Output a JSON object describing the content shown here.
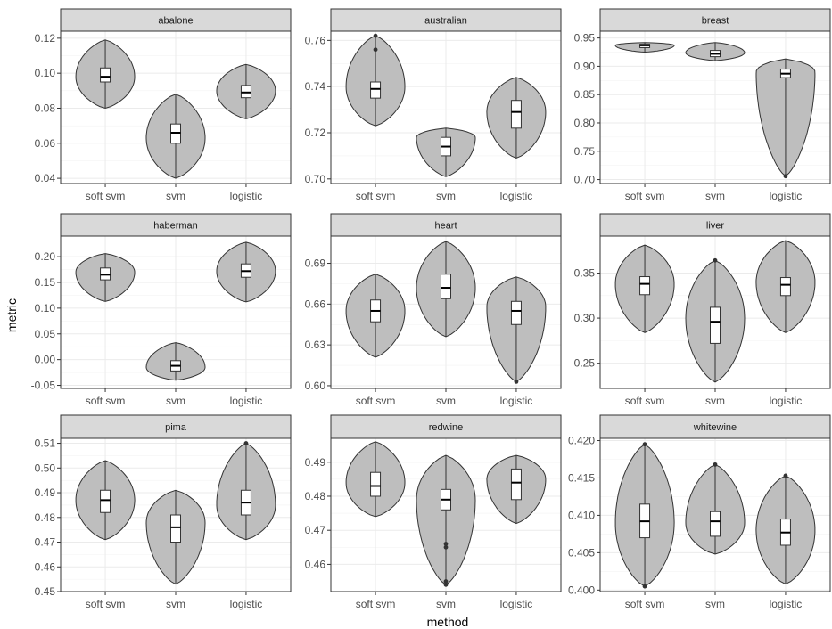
{
  "figure": {
    "xlabel": "method",
    "ylabel": "metric",
    "colors": {
      "violin_fill": "#bebebe",
      "violin_stroke": "#333333",
      "box_fill": "#ffffff",
      "strip_fill": "#d9d9d9",
      "grid": "#ebebeb",
      "panel_border": "#333333"
    }
  },
  "chart_data": [
    {
      "type": "violin",
      "title": "abalone",
      "categories": [
        "soft svm",
        "svm",
        "logistic"
      ],
      "yticks": [
        0.04,
        0.06,
        0.08,
        0.1,
        0.12
      ],
      "ytick_labels": [
        "0.04",
        "0.06",
        "0.08",
        "0.10",
        "0.12"
      ],
      "ylim": [
        0.037,
        0.124
      ],
      "groups": [
        {
          "name": "soft svm",
          "min": 0.08,
          "max": 0.119,
          "q1": 0.095,
          "median": 0.098,
          "q3": 0.103,
          "widest": 0.098,
          "outliers": []
        },
        {
          "name": "svm",
          "min": 0.04,
          "max": 0.088,
          "q1": 0.06,
          "median": 0.066,
          "q3": 0.071,
          "widest": 0.063,
          "outliers": []
        },
        {
          "name": "logistic",
          "min": 0.074,
          "max": 0.105,
          "q1": 0.086,
          "median": 0.089,
          "q3": 0.093,
          "widest": 0.09,
          "outliers": []
        }
      ]
    },
    {
      "type": "violin",
      "title": "australian",
      "categories": [
        "soft svm",
        "svm",
        "logistic"
      ],
      "yticks": [
        0.7,
        0.72,
        0.74,
        0.76
      ],
      "ytick_labels": [
        "0.70",
        "0.72",
        "0.74",
        "0.76"
      ],
      "ylim": [
        0.698,
        0.764
      ],
      "groups": [
        {
          "name": "soft svm",
          "min": 0.723,
          "max": 0.762,
          "q1": 0.735,
          "median": 0.739,
          "q3": 0.742,
          "widest": 0.74,
          "outliers": [
            0.762,
            0.756
          ]
        },
        {
          "name": "svm",
          "min": 0.701,
          "max": 0.722,
          "q1": 0.71,
          "median": 0.714,
          "q3": 0.718,
          "widest": 0.718,
          "outliers": []
        },
        {
          "name": "logistic",
          "min": 0.709,
          "max": 0.744,
          "q1": 0.722,
          "median": 0.729,
          "q3": 0.734,
          "widest": 0.729,
          "outliers": []
        }
      ]
    },
    {
      "type": "violin",
      "title": "breast",
      "categories": [
        "soft svm",
        "svm",
        "logistic"
      ],
      "yticks": [
        0.7,
        0.75,
        0.8,
        0.85,
        0.9,
        0.95
      ],
      "ytick_labels": [
        "0.70",
        "0.75",
        "0.80",
        "0.85",
        "0.90",
        "0.95"
      ],
      "ylim": [
        0.693,
        0.962
      ],
      "groups": [
        {
          "name": "soft svm",
          "min": 0.925,
          "max": 0.942,
          "q1": 0.933,
          "median": 0.937,
          "q3": 0.939,
          "widest": 0.937,
          "outliers": []
        },
        {
          "name": "svm",
          "min": 0.91,
          "max": 0.942,
          "q1": 0.917,
          "median": 0.922,
          "q3": 0.928,
          "widest": 0.924,
          "outliers": []
        },
        {
          "name": "logistic",
          "min": 0.706,
          "max": 0.913,
          "q1": 0.88,
          "median": 0.887,
          "q3": 0.895,
          "widest": 0.89,
          "outliers": [
            0.706
          ]
        }
      ]
    },
    {
      "type": "violin",
      "title": "haberman",
      "categories": [
        "soft svm",
        "svm",
        "logistic"
      ],
      "yticks": [
        -0.05,
        0.0,
        0.05,
        0.1,
        0.15,
        0.2
      ],
      "ytick_labels": [
        "-0.05",
        "0.00",
        "0.05",
        "0.10",
        "0.15",
        "0.20"
      ],
      "ylim": [
        -0.056,
        0.24
      ],
      "groups": [
        {
          "name": "soft svm",
          "min": 0.113,
          "max": 0.206,
          "q1": 0.155,
          "median": 0.165,
          "q3": 0.178,
          "widest": 0.17,
          "outliers": []
        },
        {
          "name": "svm",
          "min": -0.04,
          "max": 0.033,
          "q1": -0.022,
          "median": -0.012,
          "q3": -0.002,
          "widest": -0.015,
          "outliers": []
        },
        {
          "name": "logistic",
          "min": 0.112,
          "max": 0.228,
          "q1": 0.16,
          "median": 0.172,
          "q3": 0.186,
          "widest": 0.172,
          "outliers": []
        }
      ]
    },
    {
      "type": "violin",
      "title": "heart",
      "categories": [
        "soft svm",
        "svm",
        "logistic"
      ],
      "yticks": [
        0.6,
        0.63,
        0.66,
        0.69
      ],
      "ytick_labels": [
        "0.60",
        "0.63",
        "0.66",
        "0.69"
      ],
      "ylim": [
        0.598,
        0.71
      ],
      "groups": [
        {
          "name": "soft svm",
          "min": 0.621,
          "max": 0.682,
          "q1": 0.647,
          "median": 0.655,
          "q3": 0.663,
          "widest": 0.655,
          "outliers": []
        },
        {
          "name": "svm",
          "min": 0.636,
          "max": 0.706,
          "q1": 0.664,
          "median": 0.672,
          "q3": 0.682,
          "widest": 0.672,
          "outliers": []
        },
        {
          "name": "logistic",
          "min": 0.603,
          "max": 0.68,
          "q1": 0.645,
          "median": 0.655,
          "q3": 0.662,
          "widest": 0.658,
          "outliers": [
            0.603
          ]
        }
      ]
    },
    {
      "type": "violin",
      "title": "liver",
      "categories": [
        "soft svm",
        "svm",
        "logistic"
      ],
      "yticks": [
        0.25,
        0.3,
        0.35
      ],
      "ytick_labels": [
        "0.25",
        "0.30",
        "0.35"
      ],
      "ylim": [
        0.222,
        0.391
      ],
      "groups": [
        {
          "name": "soft svm",
          "min": 0.284,
          "max": 0.381,
          "q1": 0.326,
          "median": 0.338,
          "q3": 0.346,
          "widest": 0.338,
          "outliers": []
        },
        {
          "name": "svm",
          "min": 0.229,
          "max": 0.364,
          "q1": 0.272,
          "median": 0.296,
          "q3": 0.312,
          "widest": 0.3,
          "outliers": [
            0.364
          ]
        },
        {
          "name": "logistic",
          "min": 0.284,
          "max": 0.386,
          "q1": 0.325,
          "median": 0.337,
          "q3": 0.345,
          "widest": 0.34,
          "outliers": []
        }
      ]
    },
    {
      "type": "violin",
      "title": "pima",
      "categories": [
        "soft svm",
        "svm",
        "logistic"
      ],
      "yticks": [
        0.45,
        0.46,
        0.47,
        0.48,
        0.49,
        0.5,
        0.51
      ],
      "ytick_labels": [
        "0.45",
        "0.46",
        "0.47",
        "0.48",
        "0.49",
        "0.50",
        "0.51"
      ],
      "ylim": [
        0.45,
        0.512
      ],
      "groups": [
        {
          "name": "soft svm",
          "min": 0.471,
          "max": 0.503,
          "q1": 0.482,
          "median": 0.487,
          "q3": 0.491,
          "widest": 0.487,
          "outliers": []
        },
        {
          "name": "svm",
          "min": 0.453,
          "max": 0.491,
          "q1": 0.47,
          "median": 0.476,
          "q3": 0.481,
          "widest": 0.478,
          "outliers": []
        },
        {
          "name": "logistic",
          "min": 0.471,
          "max": 0.51,
          "q1": 0.481,
          "median": 0.486,
          "q3": 0.491,
          "widest": 0.485,
          "outliers": [
            0.51
          ]
        }
      ]
    },
    {
      "type": "violin",
      "title": "redwine",
      "categories": [
        "soft svm",
        "svm",
        "logistic"
      ],
      "yticks": [
        0.46,
        0.47,
        0.48,
        0.49
      ],
      "ytick_labels": [
        "0.46",
        "0.47",
        "0.48",
        "0.49"
      ],
      "ylim": [
        0.452,
        0.497
      ],
      "groups": [
        {
          "name": "soft svm",
          "min": 0.474,
          "max": 0.496,
          "q1": 0.48,
          "median": 0.483,
          "q3": 0.487,
          "widest": 0.484,
          "outliers": []
        },
        {
          "name": "svm",
          "min": 0.454,
          "max": 0.492,
          "q1": 0.476,
          "median": 0.479,
          "q3": 0.482,
          "widest": 0.479,
          "outliers": [
            0.466,
            0.465,
            0.455,
            0.454
          ]
        },
        {
          "name": "logistic",
          "min": 0.472,
          "max": 0.492,
          "q1": 0.479,
          "median": 0.484,
          "q3": 0.488,
          "widest": 0.485,
          "outliers": []
        }
      ]
    },
    {
      "type": "violin",
      "title": "whitewine",
      "categories": [
        "soft svm",
        "svm",
        "logistic"
      ],
      "yticks": [
        0.4,
        0.405,
        0.41,
        0.415,
        0.42
      ],
      "ytick_labels": [
        "0.400",
        "0.405",
        "0.410",
        "0.415",
        "0.420"
      ],
      "ylim": [
        0.3998,
        0.4203
      ],
      "groups": [
        {
          "name": "soft svm",
          "min": 0.4005,
          "max": 0.4195,
          "q1": 0.407,
          "median": 0.4092,
          "q3": 0.4115,
          "widest": 0.409,
          "outliers": [
            0.4195,
            0.4005
          ]
        },
        {
          "name": "svm",
          "min": 0.4048,
          "max": 0.4168,
          "q1": 0.4072,
          "median": 0.4092,
          "q3": 0.4105,
          "widest": 0.409,
          "outliers": [
            0.4168
          ]
        },
        {
          "name": "logistic",
          "min": 0.4008,
          "max": 0.4153,
          "q1": 0.406,
          "median": 0.4077,
          "q3": 0.4095,
          "widest": 0.408,
          "outliers": [
            0.4153
          ]
        }
      ]
    }
  ]
}
